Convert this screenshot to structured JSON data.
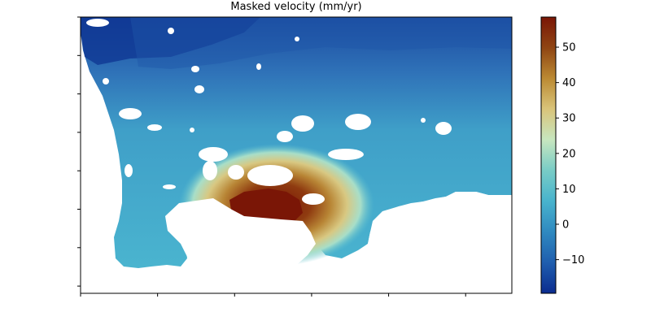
{
  "chart_data": {
    "type": "heatmap",
    "title": "Masked velocity (mm/yr)",
    "xlabel": "",
    "ylabel": "",
    "colorbar": {
      "range": [
        -19.5,
        58.5
      ],
      "tick_values": [
        -10,
        0,
        10,
        20,
        30,
        40,
        50
      ],
      "tick_labels": [
        "−10",
        "0",
        "10",
        "20",
        "30",
        "40",
        "50"
      ],
      "colormap_stops": [
        "#0b2c8f",
        "#1f5eae",
        "#2f89c0",
        "#48b3cd",
        "#78ccc6",
        "#c7e6bf",
        "#d9c47a",
        "#bb8a33",
        "#8f4513",
        "#7a1606"
      ]
    },
    "x_tick_count": 6,
    "y_tick_count": 8,
    "x_tick_labels_visible": false,
    "y_tick_labels_visible": false,
    "field_description_values": {
      "north_west_min": -18,
      "background_typical": 3,
      "hotspot_peak": 58,
      "masked_value": null
    }
  }
}
